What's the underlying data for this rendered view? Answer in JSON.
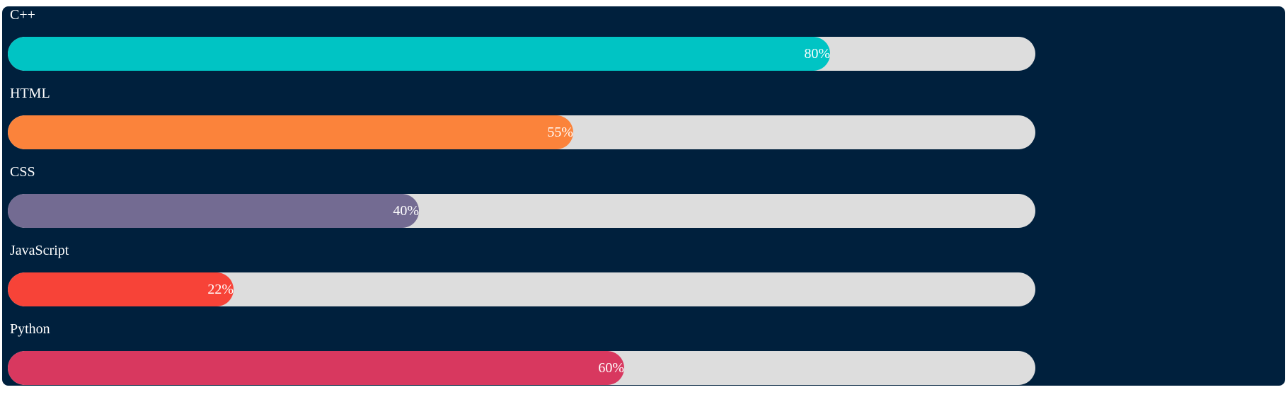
{
  "chart_data": {
    "type": "bar",
    "orientation": "horizontal",
    "categories": [
      "C++",
      "HTML",
      "CSS",
      "JavaScript",
      "Python"
    ],
    "values": [
      80,
      55,
      40,
      22,
      60
    ],
    "value_labels": [
      "80%",
      "55%",
      "40%",
      "22%",
      "60%"
    ],
    "xlim": [
      0,
      100
    ],
    "colors": [
      "#00c4c4",
      "#fb833b",
      "#736b92",
      "#f74338",
      "#d8385f"
    ],
    "track_color": "#dddddd",
    "background_color": "#00203d",
    "grid": false,
    "legend": "none"
  }
}
